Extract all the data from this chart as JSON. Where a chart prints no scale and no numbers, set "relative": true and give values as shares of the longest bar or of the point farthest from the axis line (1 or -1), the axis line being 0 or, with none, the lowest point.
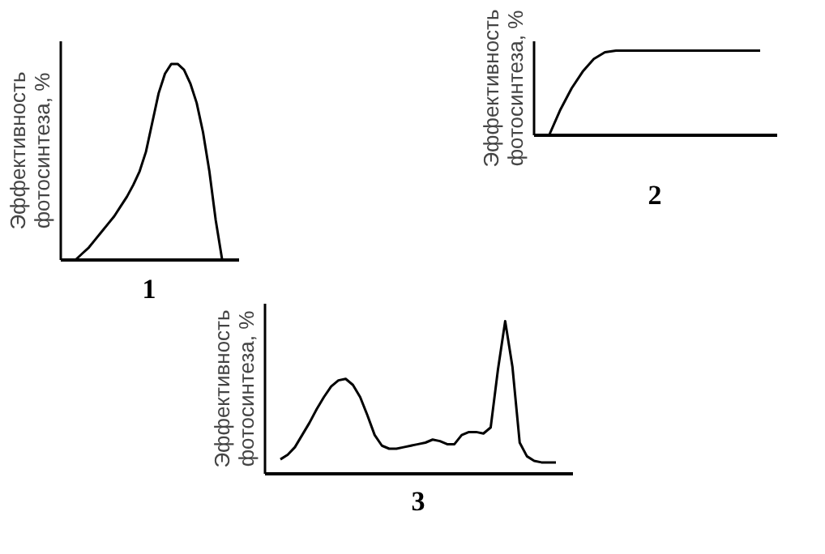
{
  "chart_data": [
    {
      "type": "line",
      "relative": true,
      "title": "1",
      "ylabel": "Эффективность фотосинтеза, %",
      "tick_labels": false,
      "grid": false,
      "marker": "none",
      "line_style": "solid",
      "color": "#000000",
      "categories": [
        null,
        null,
        null,
        null,
        null,
        null,
        null,
        null,
        null,
        null,
        null,
        null,
        null,
        null,
        null,
        null,
        null,
        null,
        null,
        null,
        null,
        null,
        null,
        null
      ],
      "values": [
        0,
        0.03,
        0.06,
        0.1,
        0.14,
        0.18,
        0.22,
        0.27,
        0.32,
        0.38,
        0.45,
        0.55,
        0.7,
        0.85,
        0.95,
        1.0,
        1.0,
        0.97,
        0.9,
        0.8,
        0.65,
        0.45,
        0.2,
        0
      ]
    },
    {
      "type": "line",
      "relative": true,
      "title": "2",
      "ylabel": "Эффективность фотосинтеза, %",
      "tick_labels": false,
      "grid": false,
      "marker": "none",
      "line_style": "solid",
      "color": "#000000",
      "categories": [
        null,
        null,
        null,
        null,
        null,
        null,
        null,
        null,
        null,
        null,
        null,
        null,
        null,
        null,
        null,
        null,
        null,
        null,
        null,
        null
      ],
      "values": [
        0,
        0.3,
        0.55,
        0.75,
        0.9,
        0.98,
        1,
        1,
        1,
        1,
        1,
        1,
        1,
        1,
        1,
        1,
        1,
        1,
        1,
        1
      ]
    },
    {
      "type": "line",
      "relative": true,
      "title": "3",
      "ylabel": "Эффективность фотосинтеза, %",
      "tick_labels": false,
      "grid": false,
      "marker": "none",
      "line_style": "solid",
      "color": "#000000",
      "categories": [
        null,
        null,
        null,
        null,
        null,
        null,
        null,
        null,
        null,
        null,
        null,
        null,
        null,
        null,
        null,
        null,
        null,
        null,
        null,
        null,
        null,
        null,
        null,
        null,
        null,
        null,
        null,
        null,
        null,
        null,
        null,
        null,
        null,
        null,
        null,
        null,
        null,
        null,
        null
      ],
      "values": [
        0.09,
        0.12,
        0.17,
        0.25,
        0.33,
        0.42,
        0.5,
        0.57,
        0.61,
        0.62,
        0.58,
        0.5,
        0.38,
        0.25,
        0.18,
        0.16,
        0.16,
        0.17,
        0.18,
        0.19,
        0.2,
        0.22,
        0.21,
        0.19,
        0.19,
        0.25,
        0.27,
        0.27,
        0.26,
        0.3,
        0.68,
        1.0,
        0.7,
        0.2,
        0.11,
        0.08,
        0.07,
        0.07,
        0.07
      ]
    }
  ]
}
